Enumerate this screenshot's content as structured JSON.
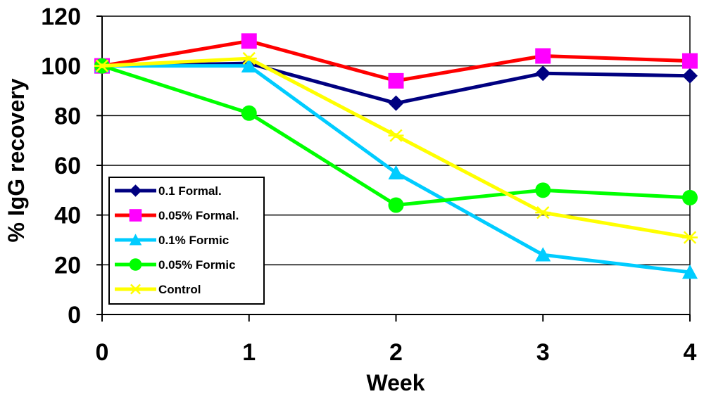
{
  "chart_data": {
    "type": "line",
    "xlabel": "Week",
    "ylabel": "% IgG recovery",
    "x": [
      0,
      1,
      2,
      3,
      4
    ],
    "x_tick_labels": [
      "0",
      "1",
      "2",
      "3",
      "4"
    ],
    "ylim": [
      0,
      120
    ],
    "y_tick_labels": [
      "0",
      "20",
      "40",
      "60",
      "80",
      "100",
      "120"
    ],
    "grid": "horizontal",
    "legend_position": "bottom-left",
    "series": [
      {
        "name": "0.1 Formal.",
        "values": [
          100,
          101,
          85,
          97,
          96
        ],
        "color": "#000080",
        "marker": "diamond"
      },
      {
        "name": "0.05% Formal.",
        "values": [
          100,
          110,
          94,
          104,
          102
        ],
        "color": "#ff0000",
        "marker": "square",
        "marker_color": "#ff00ff"
      },
      {
        "name": "0.1% Formic",
        "values": [
          100,
          100,
          57,
          24,
          17
        ],
        "color": "#00ccff",
        "marker": "triangle"
      },
      {
        "name": "0.05% Formic",
        "values": [
          100,
          81,
          44,
          50,
          47
        ],
        "color": "#00ff00",
        "marker": "circle"
      },
      {
        "name": "Control",
        "values": [
          100,
          103,
          72,
          41,
          31
        ],
        "color": "#ffff00",
        "marker": "asterisk"
      }
    ]
  }
}
